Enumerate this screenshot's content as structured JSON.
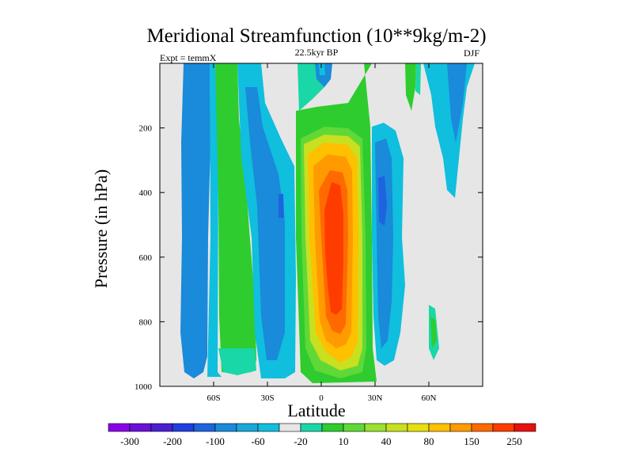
{
  "chart_data": {
    "type": "contour",
    "title": "Meridional Streamfunction (10**9kg/m-2)",
    "subtitle": "22.5kyr BP",
    "left_label": "Expt = temmX",
    "right_label": "DJF",
    "xlabel": "Latitude",
    "ylabel": "Pressure (in hPa)",
    "xlim": [
      -90,
      90
    ],
    "ylim": [
      1000,
      0
    ],
    "x_ticks": [
      {
        "value": -60,
        "label": "60S"
      },
      {
        "value": -30,
        "label": "30S"
      },
      {
        "value": 0,
        "label": "0"
      },
      {
        "value": 30,
        "label": "30N"
      },
      {
        "value": 60,
        "label": "60N"
      }
    ],
    "y_ticks": [
      {
        "value": 200,
        "label": "200"
      },
      {
        "value": 400,
        "label": "400"
      },
      {
        "value": 600,
        "label": "600"
      },
      {
        "value": 800,
        "label": "800"
      },
      {
        "value": 1000,
        "label": "1000"
      }
    ],
    "missing_color": "#e6e6e6",
    "colorbar": {
      "labels": [
        "-300",
        "-200",
        "-100",
        "-60",
        "-20",
        "10",
        "40",
        "80",
        "150",
        "250"
      ],
      "colors": [
        "#8a00e8",
        "#6a10d8",
        "#4a20d0",
        "#1f3fe0",
        "#1d64de",
        "#1a8ada",
        "#18a8da",
        "#10bede",
        "#e6e6e6",
        "#19d7a6",
        "#2ecc2e",
        "#60d838",
        "#9be030",
        "#c8e020",
        "#e6e010",
        "#ffc000",
        "#ff9a00",
        "#ff6a00",
        "#ff3c00",
        "#e81010"
      ]
    },
    "features": [
      {
        "name": "tropical-positive-cell",
        "lat": 10,
        "top_hPa": 150,
        "bottom_hPa": 1000,
        "peak_value": 200
      },
      {
        "name": "southern-ferrel-negative-cell",
        "lat": -40,
        "top_hPa": 0,
        "bottom_hPa": 1000,
        "value": -40
      },
      {
        "name": "northern-ferrel-negative-cell",
        "lat": 35,
        "top_hPa": 200,
        "bottom_hPa": 1000,
        "value": -40
      },
      {
        "name": "southern-polar-negative-cell",
        "lat": -75,
        "top_hPa": 0,
        "bottom_hPa": 950,
        "value": -40
      },
      {
        "name": "southern-mid-positive-cell",
        "lat": -60,
        "top_hPa": 0,
        "bottom_hPa": 960,
        "value": 30
      }
    ]
  }
}
